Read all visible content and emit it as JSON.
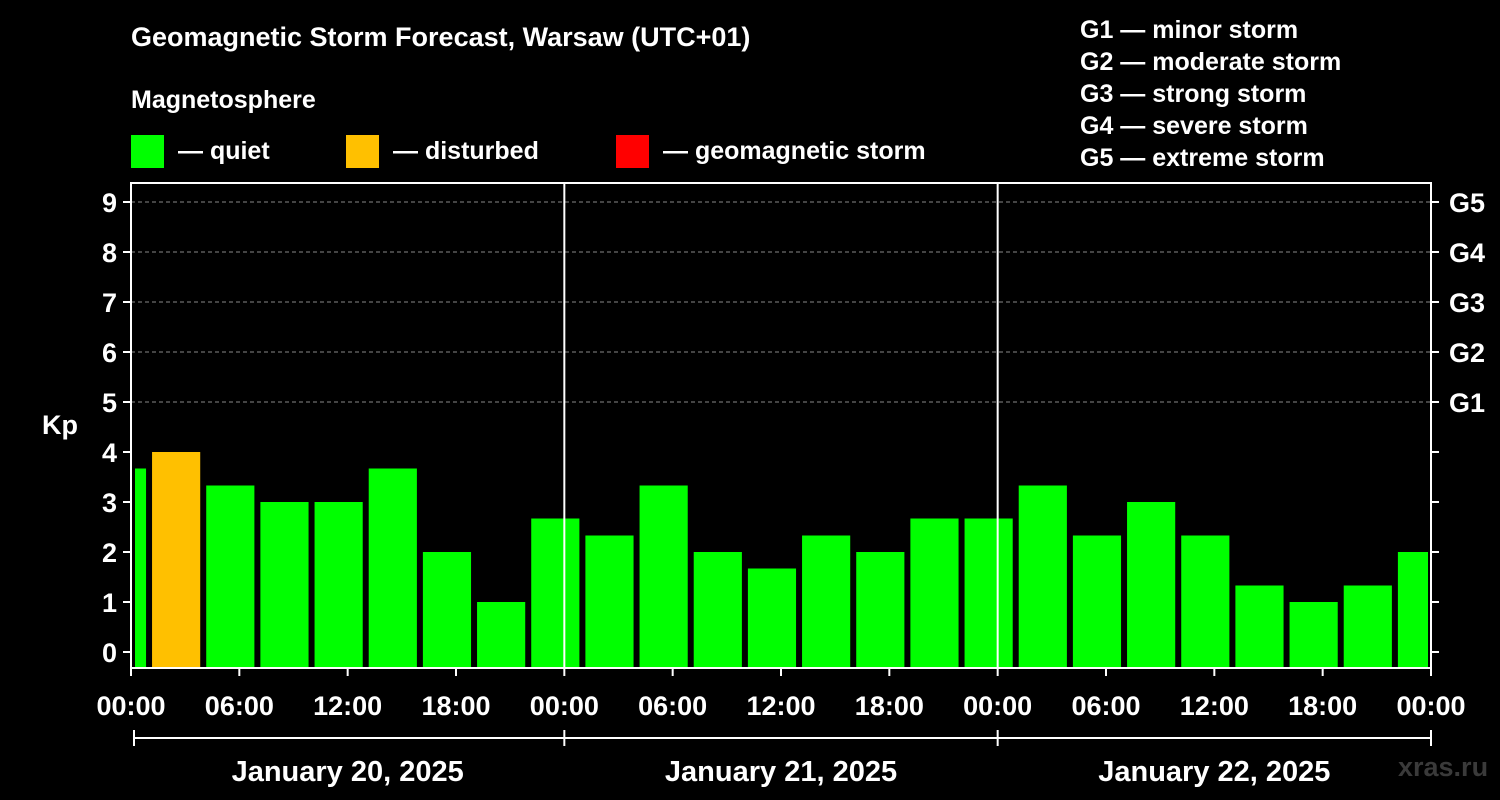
{
  "title": "Geomagnetic Storm Forecast, Warsaw (UTC+01)",
  "legend": {
    "heading": "Magnetosphere",
    "items": [
      {
        "label": "— quiet",
        "color": "#00ff00"
      },
      {
        "label": "— disturbed",
        "color": "#ffc000"
      },
      {
        "label": "— geomagnetic storm",
        "color": "#ff0000"
      }
    ]
  },
  "storm_scale": [
    "G1 — minor storm",
    "G2 — moderate storm",
    "G3 — strong storm",
    "G4 — severe storm",
    "G5 — extreme storm"
  ],
  "watermark": "xras.ru",
  "chart_data": {
    "type": "bar",
    "ylabel": "Kp",
    "ylim": [
      0,
      9
    ],
    "grid": "dashed horizontal at Kp 5–9",
    "x_tick_labels": [
      "00:00",
      "06:00",
      "12:00",
      "18:00",
      "00:00",
      "06:00",
      "12:00",
      "18:00",
      "00:00",
      "06:00",
      "12:00",
      "18:00",
      "00:00"
    ],
    "y_ticks": [
      0,
      1,
      2,
      3,
      4,
      5,
      6,
      7,
      8,
      9
    ],
    "right_axis": [
      {
        "kp": 5,
        "label": "G1"
      },
      {
        "kp": 6,
        "label": "G2"
      },
      {
        "kp": 7,
        "label": "G3"
      },
      {
        "kp": 8,
        "label": "G4"
      },
      {
        "kp": 9,
        "label": "G5"
      }
    ],
    "days": [
      "January 20, 2025",
      "January 21, 2025",
      "January 22, 2025"
    ],
    "series": [
      {
        "start_hours": [
          0,
          1,
          4,
          7,
          10,
          13,
          16,
          19,
          22,
          25,
          28,
          31,
          34,
          37,
          40,
          43,
          46,
          49,
          52,
          55,
          58,
          61,
          64,
          67,
          70
        ],
        "end_hours": [
          1,
          4,
          7,
          10,
          13,
          16,
          19,
          22,
          25,
          28,
          31,
          34,
          37,
          40,
          43,
          46,
          49,
          52,
          55,
          58,
          61,
          64,
          67,
          70,
          72
        ],
        "values": [
          3.67,
          4.0,
          3.33,
          3.0,
          3.0,
          3.67,
          2.0,
          1.0,
          2.67,
          2.33,
          3.33,
          2.0,
          1.67,
          2.33,
          2.0,
          2.67,
          2.67,
          3.33,
          2.33,
          3.0,
          2.33,
          1.33,
          1.0,
          1.33,
          2.0
        ],
        "status": [
          "quiet",
          "disturbed",
          "quiet",
          "quiet",
          "quiet",
          "quiet",
          "quiet",
          "quiet",
          "quiet",
          "quiet",
          "quiet",
          "quiet",
          "quiet",
          "quiet",
          "quiet",
          "quiet",
          "quiet",
          "quiet",
          "quiet",
          "quiet",
          "quiet",
          "quiet",
          "quiet",
          "quiet",
          "quiet"
        ]
      }
    ]
  }
}
